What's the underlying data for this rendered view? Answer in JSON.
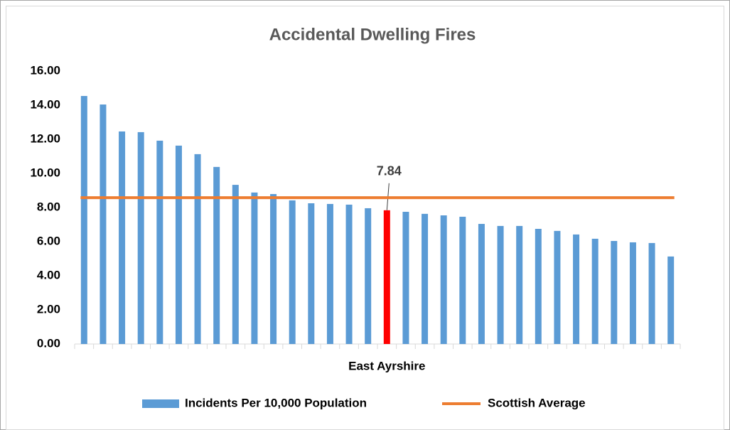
{
  "chart_data": {
    "type": "bar",
    "title": "Accidental Dwelling Fires",
    "categories": [
      null,
      null,
      null,
      null,
      null,
      null,
      null,
      null,
      null,
      null,
      null,
      null,
      null,
      null,
      null,
      null,
      "East Ayrshire",
      null,
      null,
      null,
      null,
      null,
      null,
      null,
      null,
      null,
      null,
      null,
      null,
      null,
      null,
      null
    ],
    "series": [
      {
        "name": "Incidents Per 10,000 Population",
        "color": "#5b9bd5",
        "values": [
          14.54,
          14.04,
          12.46,
          12.42,
          11.92,
          11.63,
          11.13,
          10.38,
          9.33,
          8.88,
          8.79,
          8.42,
          8.25,
          8.21,
          8.17,
          7.96,
          7.84,
          7.75,
          7.63,
          7.54,
          7.46,
          7.04,
          6.92,
          6.92,
          6.75,
          6.63,
          6.42,
          6.17,
          6.04,
          5.96,
          5.92,
          5.13
        ]
      }
    ],
    "highlight": {
      "category": "East Ayrshire",
      "color": "#ff0000",
      "data_label": true
    },
    "reference_line": {
      "name": "Scottish Average",
      "color": "#ed7d31",
      "value": 8.58
    },
    "ylim": [
      0,
      16
    ],
    "yticks": [
      {
        "value": 0,
        "label": "0.00"
      },
      {
        "value": 2,
        "label": "2.00"
      },
      {
        "value": 4,
        "label": "4.00"
      },
      {
        "value": 6,
        "label": "6.00"
      },
      {
        "value": 8,
        "label": "8.00"
      },
      {
        "value": 10,
        "label": "10.00"
      },
      {
        "value": 12,
        "label": "12.00"
      },
      {
        "value": 14,
        "label": "14.00"
      },
      {
        "value": 16,
        "label": "16.00"
      }
    ],
    "grid": false,
    "legend": "bottom"
  }
}
